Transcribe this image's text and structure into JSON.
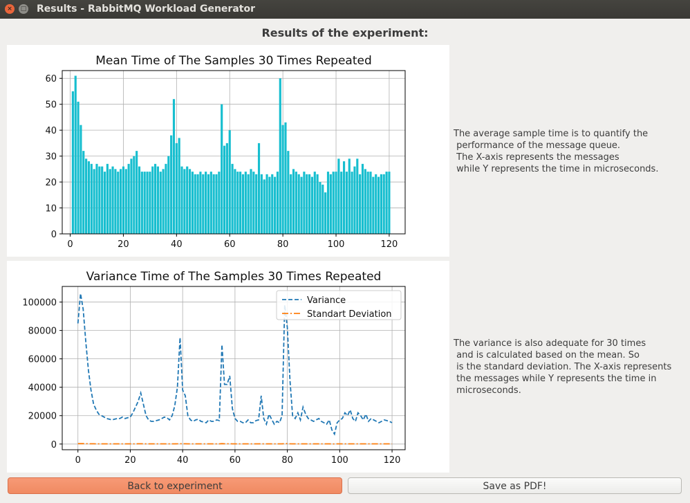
{
  "window": {
    "title": "Results - RabbitMQ Workload Generator",
    "close_icon": "×",
    "maximize_icon": "□"
  },
  "heading": "Results of the experiment:",
  "mean_description": "The average sample time is to quantify the\n performance of the message queue.\n The X-axis represents the messages\n while Y represents the time in microseconds.",
  "variance_description": "The variance is also adequate for 30 times\n and is calculated based on the mean. So\n is the standard deviation. The X-axis represents\n the messages while Y represents the time in\n microseconds.",
  "buttons": {
    "back": "Back to experiment",
    "save": "Save as PDF!"
  },
  "chart_data": [
    {
      "type": "bar",
      "title": "Mean Time of The Samples 30 Times Repeated",
      "xlabel": "",
      "ylabel": "",
      "xlim": [
        -3,
        126
      ],
      "ylim": [
        0,
        63
      ],
      "xticks": [
        0,
        20,
        40,
        60,
        80,
        100,
        120
      ],
      "yticks": [
        0,
        10,
        20,
        30,
        40,
        50,
        60
      ],
      "grid": true,
      "color": "#17becf",
      "x_start": 1,
      "values": [
        55,
        61,
        51,
        42,
        32,
        29,
        28,
        27,
        25,
        27,
        26,
        26,
        24,
        27,
        25,
        26,
        25,
        24,
        25,
        26,
        25,
        27,
        29,
        30,
        32,
        26,
        24,
        24,
        24,
        24,
        26,
        27,
        26,
        24,
        25,
        27,
        30,
        38,
        52,
        35,
        37,
        26,
        25,
        26,
        25,
        24,
        23,
        23,
        24,
        23,
        24,
        23,
        24,
        23,
        23,
        24,
        50,
        34,
        35,
        40,
        27,
        25,
        24,
        24,
        23,
        24,
        23,
        25,
        24,
        23,
        35,
        23,
        21,
        23,
        22,
        23,
        22,
        24,
        60,
        42,
        43,
        32,
        23,
        25,
        24,
        23,
        22,
        24,
        23,
        23,
        22,
        24,
        23,
        20,
        19,
        16,
        24,
        23,
        24,
        24,
        29,
        24,
        28,
        24,
        29,
        24,
        26,
        29,
        23,
        27,
        25,
        24,
        24,
        22,
        23,
        22,
        23,
        23,
        24,
        24
      ]
    },
    {
      "type": "line",
      "title": "Variance Time of The Samples 30 Times Repeated",
      "xlabel": "",
      "ylabel": "",
      "xlim": [
        -6,
        125
      ],
      "ylim": [
        -4000,
        111000
      ],
      "xticks": [
        0,
        20,
        40,
        60,
        80,
        100,
        120
      ],
      "yticks": [
        0,
        20000,
        40000,
        60000,
        80000,
        100000
      ],
      "grid": true,
      "legend_position": "top-right",
      "series": [
        {
          "name": "Variance",
          "color": "#1f77b4",
          "style": "dashed",
          "x_start": 0,
          "values": [
            85000,
            106000,
            95000,
            72000,
            52000,
            38000,
            28000,
            24000,
            21000,
            20000,
            19000,
            18000,
            17500,
            17000,
            17500,
            18000,
            18000,
            19000,
            18000,
            18500,
            19000,
            22000,
            26000,
            30000,
            36000,
            28000,
            20000,
            17000,
            16000,
            16000,
            16500,
            17000,
            18000,
            19000,
            18500,
            17000,
            20000,
            27000,
            40000,
            75000,
            38000,
            34000,
            20000,
            17000,
            16000,
            17000,
            17500,
            16000,
            15500,
            15000,
            17000,
            16000,
            16000,
            17000,
            16500,
            70000,
            42000,
            42000,
            48000,
            25000,
            18000,
            16000,
            16000,
            15000,
            15000,
            17000,
            15000,
            15000,
            16500,
            17000,
            34000,
            18000,
            14000,
            21000,
            17500,
            14000,
            16000,
            15000,
            20000,
            98000,
            82000,
            45000,
            20000,
            18000,
            22000,
            17000,
            26000,
            21000,
            18000,
            17000,
            16000,
            17000,
            18000,
            16000,
            15000,
            14000,
            17000,
            10000,
            7000,
            15000,
            17000,
            18000,
            22000,
            20000,
            24000,
            18000,
            16000,
            22000,
            20000,
            17000,
            21000,
            16000,
            18000,
            17000,
            16000,
            15000,
            16000,
            17000,
            16500,
            16000,
            15000
          ]
        },
        {
          "name": "Standart Deviation",
          "color": "#ff7f0e",
          "style": "dashdot",
          "x_start": 0,
          "values": [
            292,
            325,
            308,
            268,
            228,
            195,
            167,
            155,
            145,
            141,
            138,
            134,
            132,
            130,
            132,
            134,
            134,
            138,
            134,
            136,
            138,
            148,
            161,
            173,
            190,
            167,
            141,
            130,
            126,
            126,
            128,
            130,
            134,
            138,
            136,
            130,
            141,
            164,
            200,
            274,
            195,
            184,
            141,
            130,
            126,
            130,
            132,
            126,
            124,
            122,
            130,
            126,
            126,
            130,
            128,
            265,
            205,
            205,
            219,
            158,
            134,
            126,
            126,
            122,
            122,
            130,
            122,
            122,
            128,
            130,
            184,
            134,
            118,
            145,
            132,
            118,
            126,
            122,
            141,
            313,
            286,
            212,
            141,
            134,
            148,
            130,
            161,
            145,
            134,
            130,
            126,
            130,
            134,
            126,
            122,
            118,
            130,
            100,
            84,
            122,
            130,
            134,
            148,
            141,
            155,
            134,
            126,
            148,
            141,
            130,
            145,
            126,
            134,
            130,
            126,
            122,
            126,
            130,
            128,
            126,
            122
          ]
        }
      ]
    }
  ]
}
